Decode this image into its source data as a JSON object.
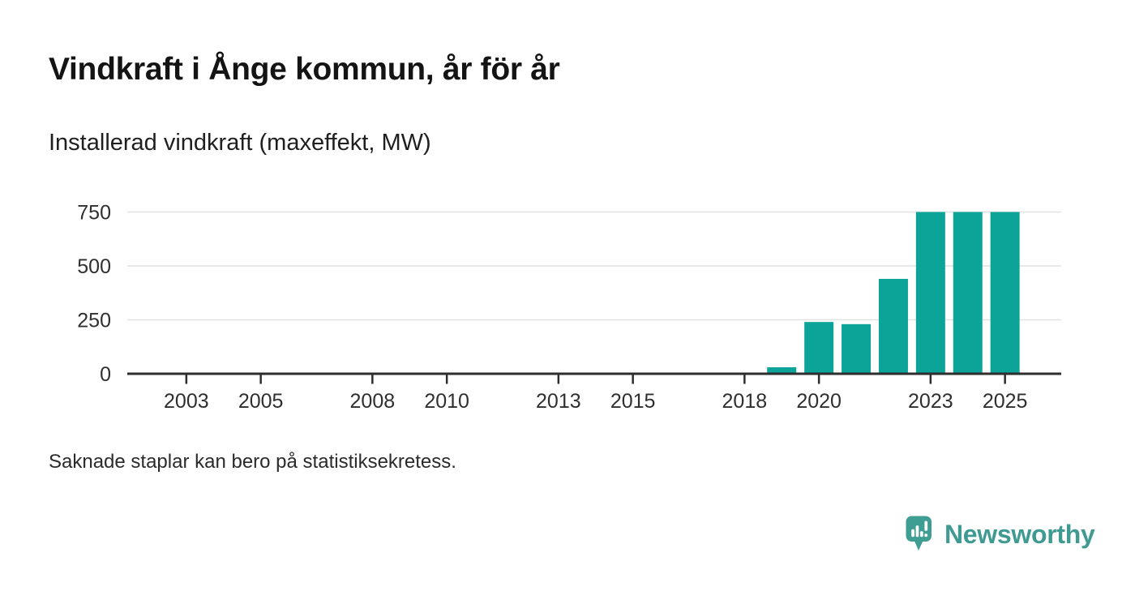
{
  "chart_data": {
    "type": "bar",
    "title": "Vindkraft i Ånge kommun, år för år",
    "subtitle": "Installerad vindkraft (maxeffekt, MW)",
    "xlabel": "",
    "ylabel": "Installerad vindkraft (maxeffekt, MW)",
    "unit": "MW",
    "footnote": "Saknade staplar kan bero på statistiksekretess.",
    "x_domain_years": [
      2002,
      2026
    ],
    "ylim": [
      0,
      750
    ],
    "y_ticks": [
      0,
      250,
      500,
      750
    ],
    "x_ticks": [
      2003,
      2005,
      2008,
      2010,
      2013,
      2015,
      2018,
      2020,
      2023,
      2025
    ],
    "grid": "horizontal-only",
    "legend_position": "none",
    "bar_color": "#0ca398",
    "axis_color": "#2e2e2e",
    "grid_color": "#e1e1e1",
    "tick_label_color": "#2f2f2f",
    "series": [
      {
        "name": "Installerad vindkraft (maxeffekt, MW)",
        "points": [
          {
            "year": 2019,
            "value": 30
          },
          {
            "year": 2020,
            "value": 240
          },
          {
            "year": 2021,
            "value": 230
          },
          {
            "year": 2022,
            "value": 440
          },
          {
            "year": 2023,
            "value": 750
          },
          {
            "year": 2024,
            "value": 750
          },
          {
            "year": 2025,
            "value": 750
          }
        ]
      }
    ]
  },
  "logo": {
    "text": "Newsworthy",
    "color": "#3f9b91",
    "icon_color": "#3f9e94",
    "icon": "newsworthy-speech-bubble-bar-chart-icon"
  }
}
